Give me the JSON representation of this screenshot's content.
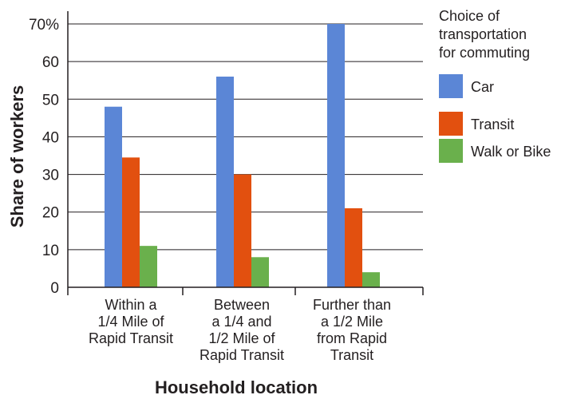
{
  "chart_data": {
    "type": "bar",
    "categories": [
      [
        "Within a",
        "1/4 Mile of",
        "Rapid Transit"
      ],
      [
        "Between",
        "a 1/4 and",
        "1/2 Mile of",
        "Rapid Transit"
      ],
      [
        "Further than",
        "a 1/2 Mile",
        "from Rapid",
        "Transit"
      ]
    ],
    "series": [
      {
        "name": "Car",
        "color": "#5b86d6",
        "values": [
          48,
          56,
          70
        ]
      },
      {
        "name": "Transit",
        "color": "#e2500f",
        "values": [
          34.5,
          30,
          21
        ]
      },
      {
        "name": "Walk or Bike",
        "color": "#6ab04c",
        "values": [
          11,
          8,
          4
        ]
      }
    ],
    "xlabel": "Household location",
    "ylabel": "Share of workers",
    "ylim": [
      0,
      70
    ],
    "yticks": [
      0,
      10,
      20,
      30,
      40,
      50,
      60,
      70
    ],
    "ytick_labels": [
      "0",
      "10",
      "20",
      "30",
      "40",
      "50",
      "60",
      "70%"
    ],
    "grid": true,
    "legend": {
      "title": [
        "Choice of",
        "transportation",
        "for commuting"
      ],
      "position": "right"
    }
  }
}
